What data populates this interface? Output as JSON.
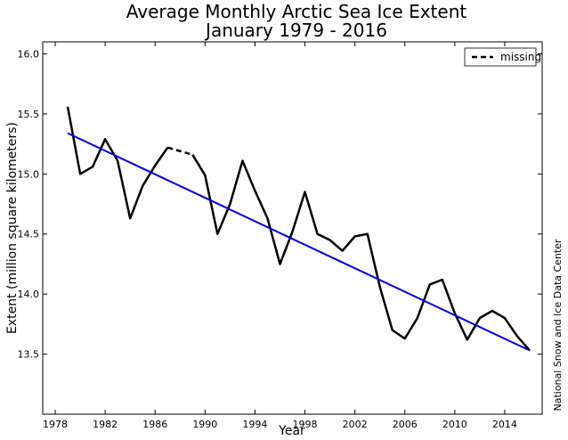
{
  "chart_data": {
    "type": "line",
    "title": "Average Monthly Arctic Sea Ice Extent",
    "subtitle": "January 1979 - 2016",
    "xlabel": "Year",
    "ylabel": "Extent (million square kilometers)",
    "xlim": [
      1977,
      2017
    ],
    "ylim": [
      13.0,
      16.1
    ],
    "xticks": [
      1978,
      1982,
      1986,
      1990,
      1994,
      1998,
      2002,
      2006,
      2010,
      2014
    ],
    "yticks": [
      13.5,
      14.0,
      14.5,
      15.0,
      15.5,
      16.0
    ],
    "ytick_labels": [
      "13.5",
      "14.0",
      "14.5",
      "15.0",
      "15.5",
      "16.0"
    ],
    "legend": {
      "position": "top-right",
      "entries": [
        "missing"
      ]
    },
    "credit": "National Snow and Ice Data Center",
    "series": [
      {
        "style": "solid",
        "color": "#000000",
        "x": [
          1979,
          1980,
          1981,
          1982,
          1983,
          1984,
          1985,
          1986,
          1987
        ],
        "y": [
          15.56,
          15.0,
          15.06,
          15.29,
          15.11,
          14.63,
          14.9,
          15.07,
          15.22
        ]
      },
      {
        "name": "missing",
        "style": "dashed",
        "color": "#000000",
        "x": [
          1987,
          1989
        ],
        "y": [
          15.22,
          15.16
        ]
      },
      {
        "style": "solid",
        "color": "#000000",
        "x": [
          1989,
          1990,
          1991,
          1992,
          1993,
          1994,
          1995,
          1996,
          1997,
          1998,
          1999,
          2000,
          2001,
          2002,
          2003,
          2004,
          2005,
          2006,
          2007,
          2008,
          2009,
          2010,
          2011,
          2012,
          2013,
          2014,
          2015,
          2016
        ],
        "y": [
          15.16,
          14.99,
          14.5,
          14.75,
          15.11,
          14.86,
          14.63,
          14.25,
          14.52,
          14.85,
          14.5,
          14.45,
          14.36,
          14.48,
          14.5,
          14.06,
          13.7,
          13.63,
          13.8,
          14.08,
          14.12,
          13.84,
          13.62,
          13.8,
          13.86,
          13.8,
          13.65,
          13.53
        ]
      },
      {
        "style": "trend",
        "color": "#0000dd",
        "x": [
          1979,
          2016
        ],
        "y": [
          15.34,
          13.53
        ]
      }
    ]
  }
}
